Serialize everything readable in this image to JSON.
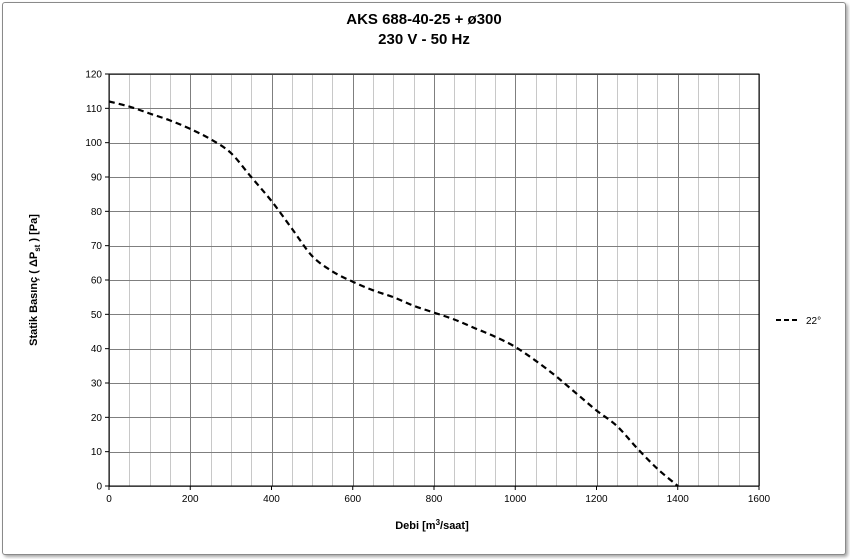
{
  "chart_data": {
    "type": "line",
    "title": "AKS 688-40-25 +  ø300",
    "subtitle": "230 V - 50 Hz",
    "xlabel": {
      "main": "Debi [m",
      "sup": "3",
      "tail": "/saat]"
    },
    "ylabel": {
      "main": "Statik Basınç ( ΔP",
      "sub": "st",
      "tail": " ) [Pa]"
    },
    "xlim": [
      0,
      1600
    ],
    "ylim": [
      0,
      120
    ],
    "xticks": [
      0,
      200,
      400,
      600,
      800,
      1000,
      1200,
      1400,
      1600
    ],
    "yticks": [
      0,
      10,
      20,
      30,
      40,
      50,
      60,
      70,
      80,
      90,
      100,
      110,
      120
    ],
    "x_minor_step": 50,
    "y_minor_step": 10,
    "grid": true,
    "legend_position": "right",
    "series": [
      {
        "name": "22°",
        "style": "dashed",
        "color": "#000000",
        "x": [
          0,
          50,
          100,
          150,
          200,
          250,
          300,
          350,
          400,
          450,
          500,
          550,
          600,
          650,
          700,
          750,
          800,
          850,
          900,
          950,
          1000,
          1050,
          1100,
          1150,
          1200,
          1250,
          1300,
          1350,
          1400
        ],
        "y": [
          112,
          110.5,
          108.5,
          106.5,
          104,
          101,
          97,
          90,
          83,
          75,
          67,
          62.5,
          59.5,
          57,
          55,
          52.5,
          50.5,
          48.5,
          46,
          43.5,
          40.5,
          36.5,
          32,
          27,
          22,
          17.5,
          11,
          5,
          0
        ]
      }
    ]
  }
}
